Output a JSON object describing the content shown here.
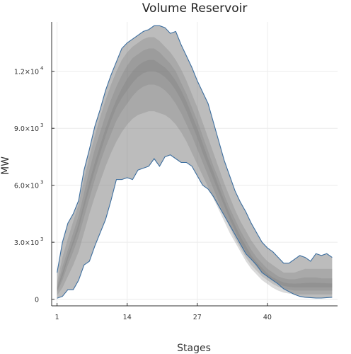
{
  "chart_data": {
    "type": "area",
    "title": "Volume Reservoir",
    "xlabel": "Stages",
    "ylabel": "MW",
    "xlim": [
      0,
      53
    ],
    "ylim": [
      -350,
      14600
    ],
    "grid": true,
    "legend": "none",
    "x_ticks": [
      {
        "value": 1,
        "label": "1"
      },
      {
        "value": 14,
        "label": "14"
      },
      {
        "value": 27,
        "label": "27"
      },
      {
        "value": 40,
        "label": "40"
      }
    ],
    "y_ticks": [
      {
        "value": 0,
        "mantissa": "0",
        "exponent": ""
      },
      {
        "value": 3000,
        "mantissa": "3.0×10",
        "exponent": "3"
      },
      {
        "value": 6000,
        "mantissa": "6.0×10",
        "exponent": "3"
      },
      {
        "value": 9000,
        "mantissa": "9.0×10",
        "exponent": "3"
      },
      {
        "value": 12000,
        "mantissa": "1.2×10",
        "exponent": "4"
      }
    ],
    "x": [
      1,
      2,
      3,
      4,
      5,
      6,
      7,
      8,
      9,
      10,
      11,
      12,
      13,
      14,
      15,
      16,
      17,
      18,
      19,
      20,
      21,
      22,
      23,
      24,
      25,
      26,
      27,
      28,
      29,
      30,
      31,
      32,
      33,
      34,
      35,
      36,
      37,
      38,
      39,
      40,
      41,
      42,
      43,
      44,
      45,
      46,
      47,
      48,
      49,
      50,
      51,
      52
    ],
    "colors": {
      "band": "#7a7a7a",
      "outline": "#3d6fa0",
      "grid": "#ececec",
      "axis": "#333333"
    },
    "bands": [
      {
        "name": "",
        "lower": [
          50,
          150,
          500,
          500,
          1000,
          1800,
          2000,
          2800,
          3500,
          4200,
          5200,
          6300,
          6300,
          6400,
          6300,
          6800,
          6900,
          7000,
          7400,
          7000,
          7500,
          7600,
          7400,
          7200,
          7200,
          7000,
          6500,
          6000,
          5800,
          5400,
          4900,
          4400,
          3900,
          3400,
          2900,
          2400,
          2100,
          1800,
          1400,
          1200,
          1000,
          800,
          550,
          400,
          250,
          150,
          100,
          80,
          60,
          60,
          80,
          100
        ],
        "upper": [
          1400,
          3000,
          4000,
          4500,
          5200,
          6800,
          7900,
          9100,
          10000,
          11000,
          11800,
          12500,
          13200,
          13500,
          13700,
          13900,
          14100,
          14200,
          14400,
          14400,
          14300,
          14000,
          14100,
          13400,
          12800,
          12200,
          11500,
          10900,
          10300,
          9300,
          8300,
          7300,
          6500,
          5700,
          5100,
          4600,
          4000,
          3500,
          3000,
          2700,
          2500,
          2200,
          1900,
          1900,
          2100,
          2300,
          2200,
          2000,
          2400,
          2300,
          2400,
          2200
        ]
      },
      {
        "name": "",
        "lower": [
          200,
          600,
          1200,
          1800,
          2500,
          3500,
          4500,
          5400,
          6200,
          7000,
          7700,
          8300,
          8800,
          9200,
          9500,
          9700,
          9800,
          9900,
          9900,
          9800,
          9700,
          9500,
          9200,
          8800,
          8300,
          7700,
          7100,
          6500,
          5900,
          5300,
          4700,
          4100,
          3500,
          3000,
          2500,
          2000,
          1600,
          1300,
          1000,
          800,
          600,
          450,
          350,
          300,
          250,
          250,
          250,
          250,
          250,
          250,
          250,
          250
        ],
        "upper": [
          900,
          2200,
          3200,
          4100,
          5000,
          6300,
          7500,
          8600,
          9600,
          10500,
          11300,
          12000,
          12600,
          13000,
          13300,
          13500,
          13700,
          13800,
          13800,
          13600,
          13300,
          13000,
          12600,
          12100,
          11500,
          10800,
          10100,
          9300,
          8500,
          7700,
          6900,
          6100,
          5400,
          4700,
          4100,
          3600,
          3100,
          2700,
          2300,
          2000,
          1800,
          1600,
          1400,
          1400,
          1400,
          1500,
          1600,
          1600,
          1600,
          1600,
          1600,
          1600
        ]
      },
      {
        "name": "",
        "lower": [
          350,
          1000,
          1800,
          2500,
          3300,
          4300,
          5300,
          6300,
          7200,
          8000,
          8700,
          9400,
          9900,
          10300,
          10700,
          11000,
          11200,
          11300,
          11300,
          11200,
          11000,
          10700,
          10300,
          9800,
          9200,
          8600,
          7900,
          7200,
          6500,
          5800,
          5100,
          4400,
          3800,
          3200,
          2700,
          2200,
          1800,
          1500,
          1200,
          1000,
          800,
          650,
          550,
          500,
          450,
          450,
          450,
          450,
          450,
          450,
          450,
          450
        ],
        "upper": [
          650,
          1700,
          2600,
          3500,
          4400,
          5600,
          6800,
          7900,
          8800,
          9700,
          10500,
          11200,
          11800,
          12300,
          12700,
          12900,
          13100,
          13200,
          13200,
          13000,
          12700,
          12400,
          12000,
          11400,
          10800,
          10100,
          9400,
          8600,
          7800,
          7000,
          6300,
          5500,
          4800,
          4200,
          3600,
          3100,
          2600,
          2200,
          1900,
          1600,
          1400,
          1200,
          1100,
          1050,
          1050,
          1100,
          1150,
          1150,
          1150,
          1100,
          1100,
          1100
        ]
      },
      {
        "name": "",
        "lower": [
          450,
          1200,
          2100,
          2900,
          3700,
          4800,
          5800,
          6800,
          7700,
          8600,
          9400,
          10100,
          10600,
          11000,
          11400,
          11700,
          11900,
          12000,
          12000,
          11900,
          11700,
          11400,
          11000,
          10500,
          9900,
          9200,
          8500,
          7700,
          7000,
          6300,
          5600,
          4900,
          4200,
          3600,
          3000,
          2500,
          2100,
          1700,
          1400,
          1150,
          950,
          800,
          700,
          650,
          620,
          620,
          620,
          620,
          620,
          620,
          620,
          620
        ],
        "upper": [
          550,
          1400,
          2300,
          3100,
          4000,
          5100,
          6200,
          7200,
          8100,
          9000,
          9800,
          10500,
          11100,
          11600,
          12000,
          12300,
          12500,
          12600,
          12600,
          12400,
          12200,
          11900,
          11500,
          11000,
          10400,
          9700,
          9000,
          8200,
          7400,
          6700,
          5900,
          5200,
          4500,
          3900,
          3300,
          2800,
          2300,
          1950,
          1650,
          1350,
          1150,
          1000,
          880,
          830,
          820,
          830,
          850,
          860,
          860,
          850,
          840,
          830
        ]
      }
    ]
  }
}
